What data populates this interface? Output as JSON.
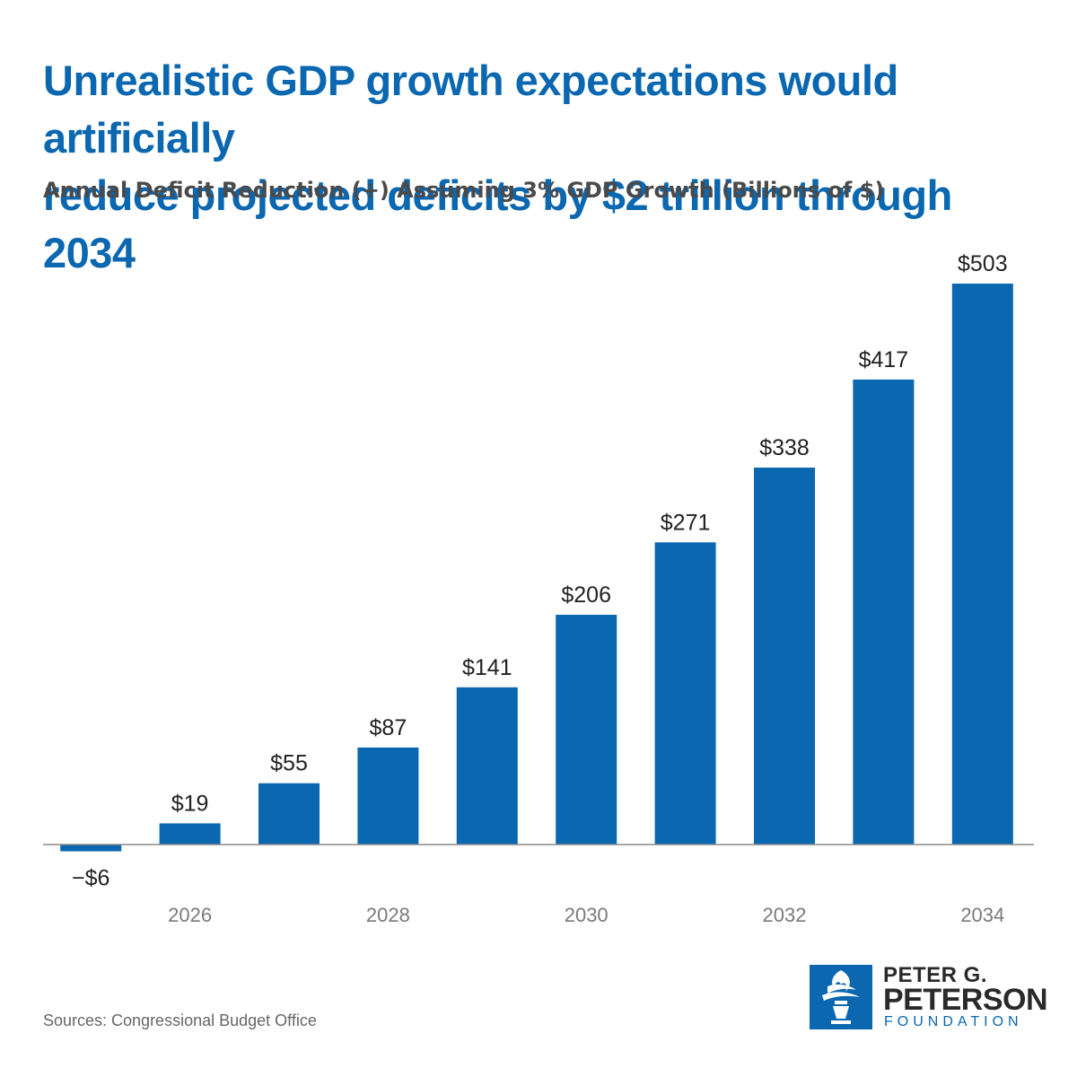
{
  "title_line1": "Unrealistic GDP growth expectations would artificially",
  "title_line2": "reduce projected deficits by $2 trillion through 2034",
  "subtitle": "Annual Deficit Reduction (+) Assuming 3% GDP Growth (Billions of $)",
  "source": "Sources: Congressional Budget Office",
  "logo": {
    "line1": "PETER G.",
    "line2": "PETERSON",
    "line3": "FOUNDATION",
    "icon": "torch-icon"
  },
  "colors": {
    "bar": "#0a67b0",
    "title": "#0a67b0",
    "axis": "#8a8a8a"
  },
  "chart_data": {
    "type": "bar",
    "categories": [
      "2025",
      "2026",
      "2027",
      "2028",
      "2029",
      "2030",
      "2031",
      "2032",
      "2033",
      "2034"
    ],
    "tick_labels": [
      "",
      "2026",
      "",
      "2028",
      "",
      "2030",
      "",
      "2032",
      "",
      "2034"
    ],
    "values": [
      -6,
      19,
      55,
      87,
      141,
      206,
      271,
      338,
      417,
      503
    ],
    "data_labels": [
      "−$6",
      "$19",
      "$55",
      "$87",
      "$141",
      "$206",
      "$271",
      "$338",
      "$417",
      "$503"
    ],
    "title": "Annual Deficit Reduction (+) Assuming 3% GDP Growth (Billions of $)",
    "xlabel": "",
    "ylabel": "",
    "ylim": [
      -10,
      510
    ],
    "grid": false,
    "legend": "none"
  }
}
